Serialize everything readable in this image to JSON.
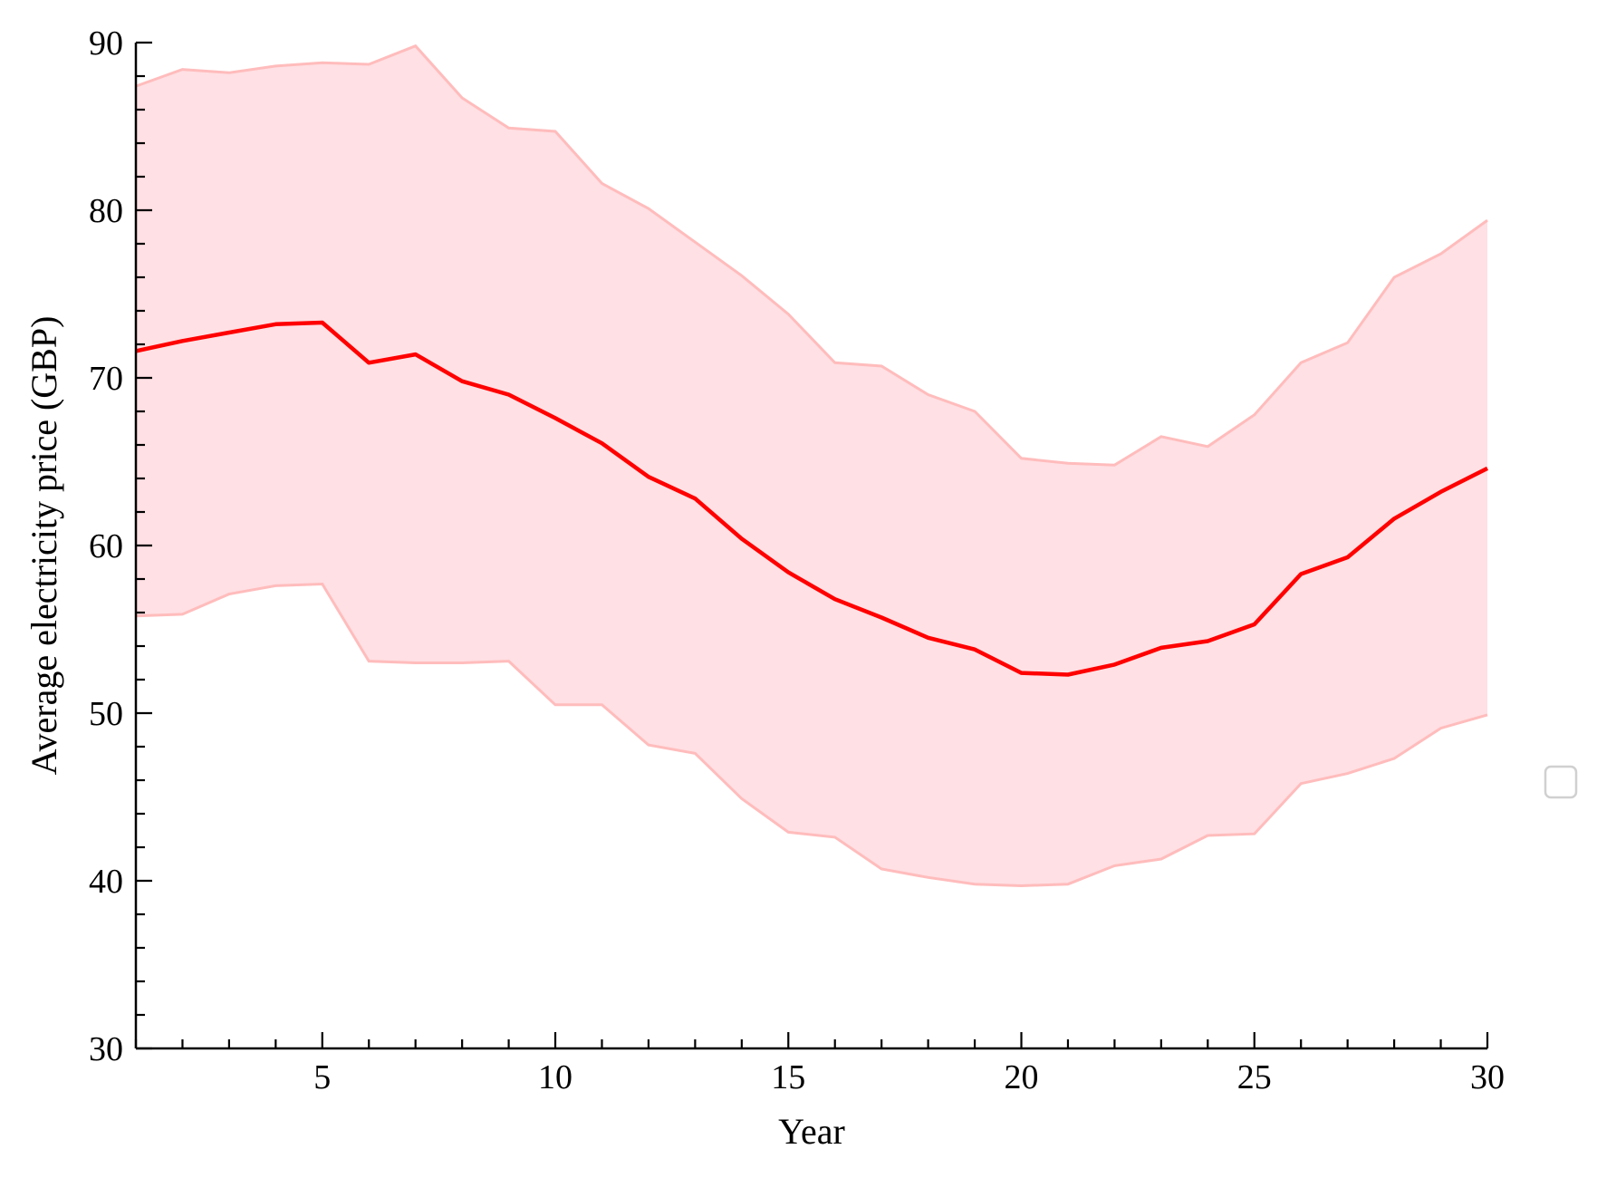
{
  "chart_data": {
    "type": "line",
    "title": "",
    "xlabel": "Year",
    "ylabel": "Average electricity price (GBP)",
    "xlim": [
      1,
      30
    ],
    "ylim": [
      30,
      90
    ],
    "xticks": [
      5,
      10,
      15,
      20,
      25,
      30
    ],
    "yticks": [
      30,
      40,
      50,
      60,
      70,
      80,
      90
    ],
    "x_minor_step": 1,
    "y_minor_step": 2,
    "grid": false,
    "legend": "empty legend box at right",
    "line_color": "#ff0000",
    "band_fill_color": "#ffe0e4",
    "band_edge_color": "#ffbcbc",
    "x": [
      1,
      2,
      3,
      4,
      5,
      6,
      7,
      8,
      9,
      10,
      11,
      12,
      13,
      14,
      15,
      16,
      17,
      18,
      19,
      20,
      21,
      22,
      23,
      24,
      25,
      26,
      27,
      28,
      29,
      30
    ],
    "series": [
      {
        "values": [
          71.6,
          72.2,
          72.7,
          73.2,
          73.3,
          70.9,
          71.4,
          69.8,
          69.0,
          67.6,
          66.1,
          64.1,
          62.8,
          60.4,
          58.4,
          56.8,
          55.7,
          54.5,
          53.8,
          52.4,
          52.3,
          52.9,
          53.9,
          54.3,
          55.3,
          58.3,
          59.3,
          61.6,
          63.2,
          64.6
        ]
      }
    ],
    "band": {
      "upper": [
        87.4,
        88.4,
        88.2,
        88.6,
        88.8,
        88.7,
        89.8,
        86.7,
        84.9,
        84.7,
        81.6,
        80.1,
        78.1,
        76.1,
        73.8,
        70.9,
        70.7,
        69.0,
        68.0,
        65.2,
        64.9,
        64.8,
        66.5,
        65.9,
        67.8,
        70.9,
        72.1,
        76.0,
        77.4,
        79.4
      ],
      "lower": [
        55.8,
        55.9,
        57.1,
        57.6,
        57.7,
        53.1,
        53.0,
        53.0,
        53.1,
        50.5,
        50.5,
        48.1,
        47.6,
        44.9,
        42.9,
        42.6,
        40.7,
        40.2,
        39.8,
        39.7,
        39.8,
        40.9,
        41.3,
        42.7,
        42.8,
        45.8,
        46.4,
        47.3,
        49.1,
        49.9
      ]
    }
  }
}
